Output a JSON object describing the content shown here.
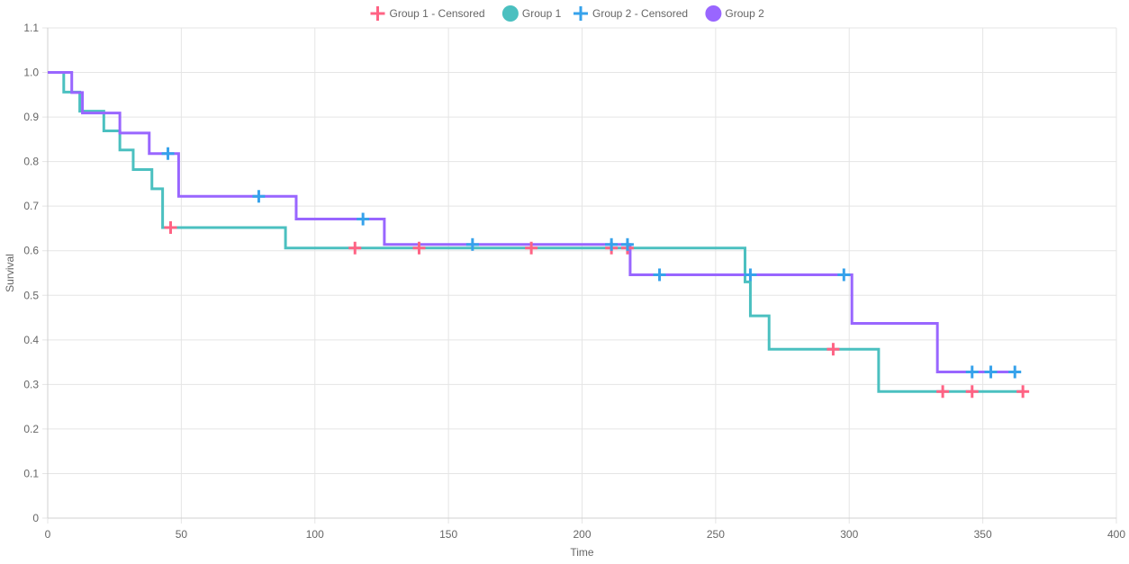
{
  "chart_data": {
    "type": "line",
    "title": "",
    "xlabel": "Time",
    "ylabel": "Survival",
    "xlim": [
      0,
      400
    ],
    "ylim": [
      0,
      1.1
    ],
    "x_ticks": [
      "0",
      "50",
      "100",
      "150",
      "200",
      "250",
      "300",
      "350",
      "400"
    ],
    "y_ticks": [
      "0",
      "0.1",
      "0.2",
      "0.3",
      "0.4",
      "0.5",
      "0.6",
      "0.7",
      "0.8",
      "0.9",
      "1.0",
      "1.1"
    ],
    "grid": true,
    "legend_position": "top",
    "legend": [
      {
        "label": "Group 1 - Censored",
        "marker": "cross",
        "color": "#ff6384"
      },
      {
        "label": "Group 1",
        "marker": "circle",
        "color": "#4bc0c0"
      },
      {
        "label": "Group 2 - Censored",
        "marker": "cross",
        "color": "#36a2eb"
      },
      {
        "label": "Group 2",
        "marker": "circle",
        "color": "#9966ff"
      }
    ],
    "series": [
      {
        "name": "Group 1",
        "kind": "step",
        "color": "#4bc0c0",
        "x": [
          0,
          6,
          12,
          21,
          27,
          32,
          39,
          43,
          89,
          261,
          263,
          270,
          311,
          365
        ],
        "y": [
          1.0,
          0.956,
          0.913,
          0.869,
          0.826,
          0.782,
          0.739,
          0.652,
          0.606,
          0.53,
          0.454,
          0.379,
          0.284,
          0.284
        ]
      },
      {
        "name": "Group 1 - Censored",
        "kind": "censored",
        "color": "#ff6384",
        "x": [
          46,
          115,
          139,
          181,
          211,
          217,
          294,
          335,
          346,
          365
        ],
        "y": [
          0.652,
          0.606,
          0.606,
          0.606,
          0.606,
          0.606,
          0.379,
          0.284,
          0.284,
          0.284
        ]
      },
      {
        "name": "Group 2",
        "kind": "step",
        "color": "#9966ff",
        "x": [
          0,
          9,
          13,
          27,
          38,
          49,
          93,
          126,
          218,
          301,
          333,
          362
        ],
        "y": [
          1.0,
          0.955,
          0.909,
          0.864,
          0.818,
          0.722,
          0.671,
          0.614,
          0.546,
          0.437,
          0.328,
          0.328
        ]
      },
      {
        "name": "Group 2 - Censored",
        "kind": "censored",
        "color": "#36a2eb",
        "x": [
          45,
          79,
          118,
          159,
          211,
          217,
          229,
          263,
          298,
          346,
          353,
          362
        ],
        "y": [
          0.818,
          0.722,
          0.671,
          0.614,
          0.614,
          0.614,
          0.546,
          0.546,
          0.546,
          0.328,
          0.328,
          0.328
        ]
      }
    ]
  }
}
